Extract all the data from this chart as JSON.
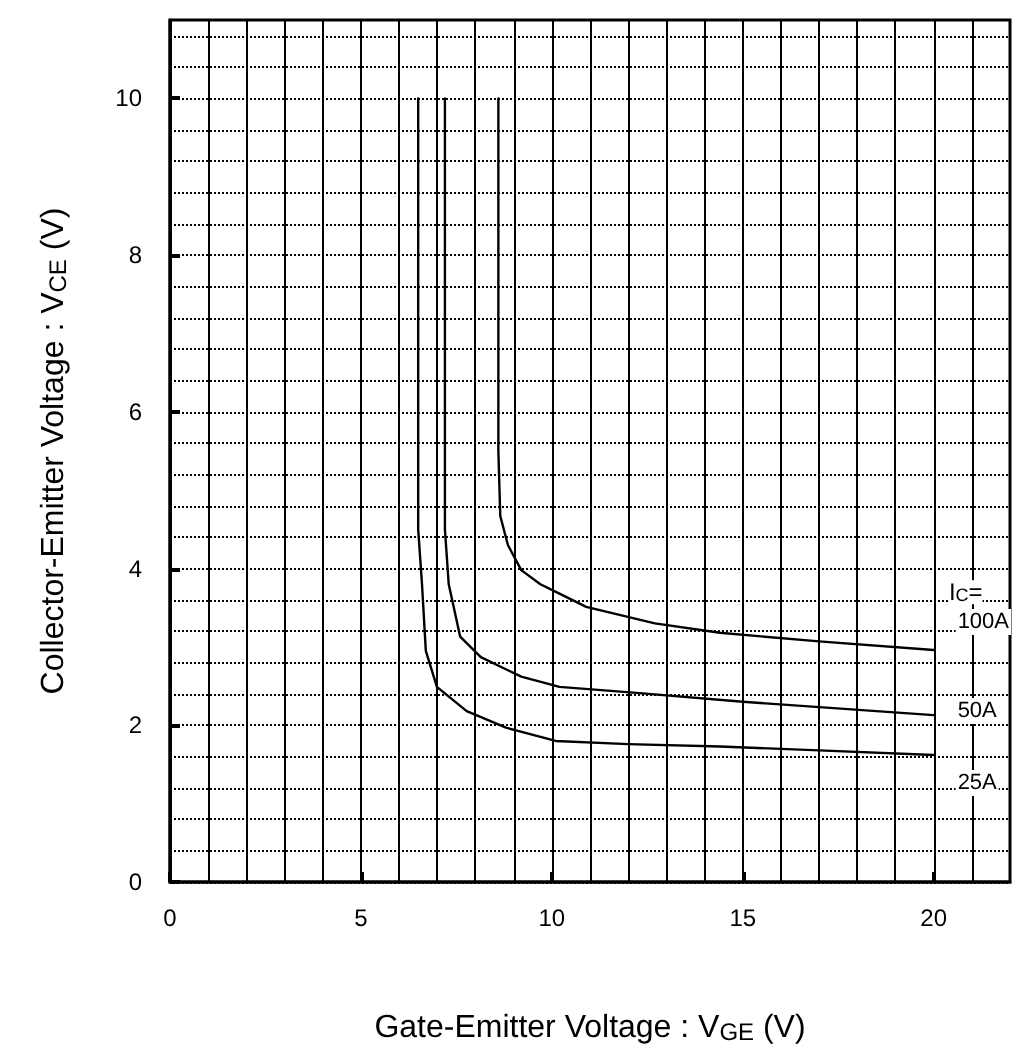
{
  "chart_data": {
    "type": "line",
    "xlabel": "Gate-Emitter Voltage : V$_{GE}$ (V)",
    "ylabel": "Collector-Emitter Voltage : V$_{CE}$ (V)",
    "xlim": [
      0,
      22
    ],
    "xticks": [
      0,
      5,
      10,
      15,
      20
    ],
    "ylim": [
      0,
      11
    ],
    "yticks": [
      0,
      2,
      4,
      6,
      8,
      10
    ],
    "grid": true,
    "marker": "none",
    "line_style": "solid",
    "annotations": [
      "I$_{C}$="
    ],
    "series": [
      {
        "name": "100A",
        "color": "#000000",
        "x": [
          8.6,
          8.6,
          8.65,
          8.85,
          9.2,
          9.7,
          10.2,
          10.9,
          12.7,
          14.4,
          17,
          20
        ],
        "values": [
          10,
          5.5,
          4.67,
          4.3,
          3.98,
          3.8,
          3.68,
          3.51,
          3.3,
          3.18,
          3.07,
          2.96
        ]
      },
      {
        "name": "50A",
        "color": "#000000",
        "x": [
          7.2,
          7.2,
          7.3,
          7.6,
          8.14,
          9.2,
          10.2,
          12.3,
          15,
          20
        ],
        "values": [
          10,
          4.5,
          3.8,
          3.13,
          2.87,
          2.62,
          2.49,
          2.41,
          2.3,
          2.13
        ]
      },
      {
        "name": "25A",
        "color": "#000000",
        "x": [
          6.5,
          6.5,
          6.6,
          6.7,
          6.99,
          7.77,
          8.8,
          10.1,
          12,
          14.4,
          17,
          20
        ],
        "values": [
          10,
          4.5,
          3.8,
          2.95,
          2.49,
          2.18,
          1.97,
          1.8,
          1.76,
          1.73,
          1.68,
          1.62
        ]
      }
    ]
  }
}
